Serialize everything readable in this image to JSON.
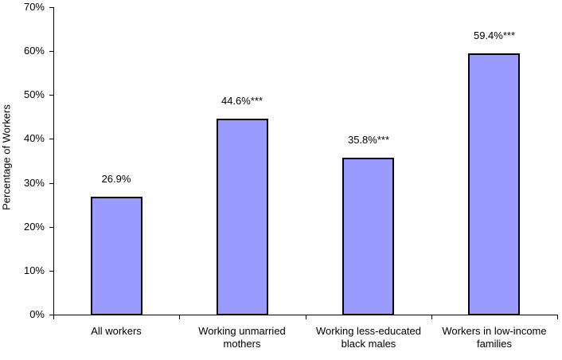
{
  "chart_data": {
    "type": "bar",
    "title": "",
    "xlabel": "",
    "ylabel": "Percentage of Workers",
    "ylim": [
      0,
      70
    ],
    "yticks": [
      "0%",
      "10%",
      "20%",
      "30%",
      "40%",
      "50%",
      "60%",
      "70%"
    ],
    "categories": [
      "All workers",
      "Working unmarried mothers",
      "Working less-educated black males",
      "Workers in low-income families"
    ],
    "category_lines": [
      [
        "All workers"
      ],
      [
        "Working unmarried",
        "mothers"
      ],
      [
        "Working less-educated",
        "black males"
      ],
      [
        "Workers in low-income",
        "families"
      ]
    ],
    "values": [
      26.9,
      44.6,
      35.8,
      59.4
    ],
    "data_labels": [
      "26.9%",
      "44.6%***",
      "35.8%***",
      "59.4%***"
    ],
    "bar_color": "#9b9bfe",
    "grid": false,
    "legend": null
  }
}
